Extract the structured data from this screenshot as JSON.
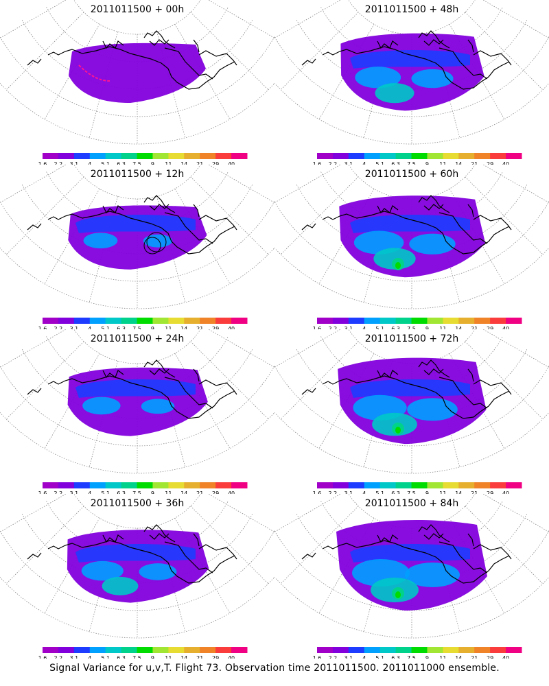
{
  "panels": [
    {
      "title": "2011011500 + 00h",
      "hour": 0
    },
    {
      "title": "2011011500 + 48h",
      "hour": 48
    },
    {
      "title": "2011011500 + 12h",
      "hour": 12
    },
    {
      "title": "2011011500 + 60h",
      "hour": 60
    },
    {
      "title": "2011011500 + 24h",
      "hour": 24
    },
    {
      "title": "2011011500 + 72h",
      "hour": 72
    },
    {
      "title": "2011011500 + 36h",
      "hour": 36
    },
    {
      "title": "2011011500 + 84h",
      "hour": 84
    }
  ],
  "colorbar": {
    "labels": [
      "1.6",
      "2.2",
      "3.1",
      "4",
      "5.1",
      "6.3",
      "7.5",
      "9",
      "11",
      "14",
      "21",
      "29",
      "40"
    ],
    "colors": [
      "#a000c8",
      "#8200dc",
      "#1e3cff",
      "#00a0ff",
      "#00c8c8",
      "#00d28c",
      "#00dc00",
      "#a0e632",
      "#e6dc32",
      "#e6af2d",
      "#f08228",
      "#fa3c3c",
      "#f00082"
    ]
  },
  "map_style": {
    "coast_color": "#000000",
    "grid_color": "#8c8c8c",
    "flight_track_color": "#ff1493"
  },
  "footer": "Signal Variance for u,v,T. Flight 73. Observation time 2011011500. 2011011000 ensemble."
}
